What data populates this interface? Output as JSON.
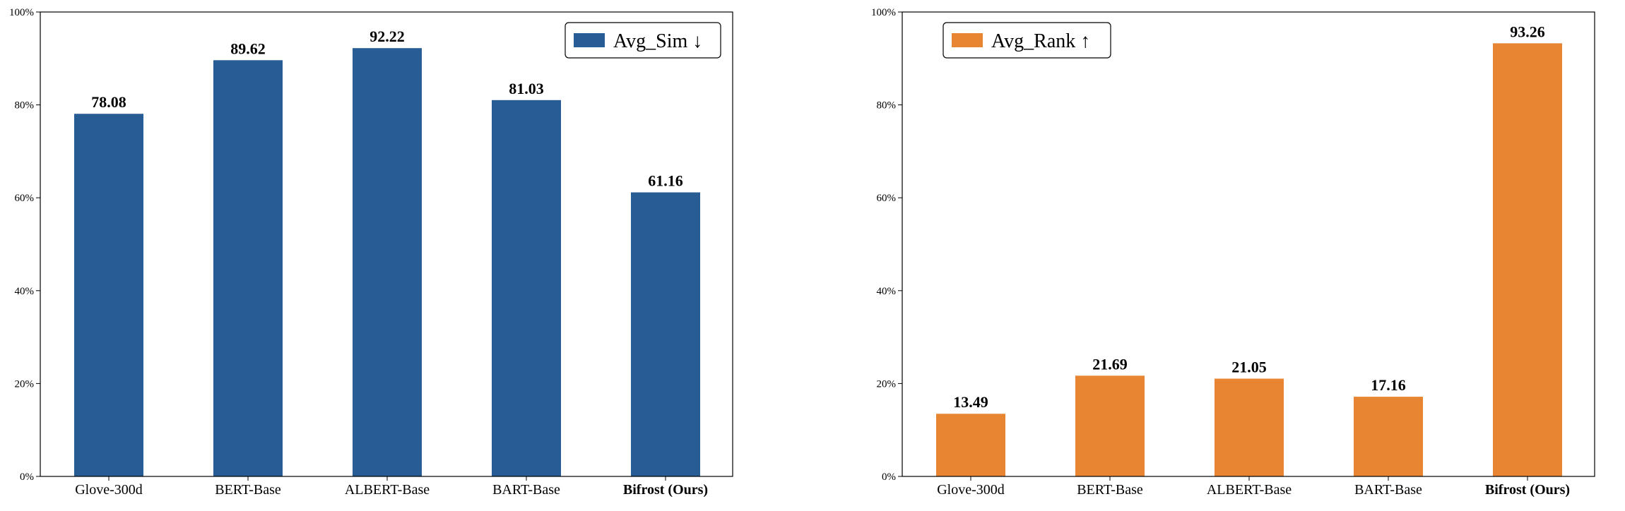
{
  "chart_data": [
    {
      "type": "bar",
      "categories": [
        "Glove-300d",
        "BERT-Base",
        "ALBERT-Base",
        "BART-Base",
        "Bifrost (Ours)"
      ],
      "highlight_category": "Bifrost (Ours)",
      "series": [
        {
          "name": "Avg_Sim ↓",
          "values": [
            78.08,
            89.62,
            92.22,
            81.03,
            61.16
          ],
          "color": "#275d94"
        }
      ],
      "value_labels": [
        "78.08",
        "89.62",
        "92.22",
        "81.03",
        "61.16"
      ],
      "ylim": [
        0,
        100
      ],
      "yticks": [
        "0%",
        "20%",
        "40%",
        "60%",
        "80%",
        "100%"
      ],
      "legend_position": "top-right",
      "grid": false
    },
    {
      "type": "bar",
      "categories": [
        "Glove-300d",
        "BERT-Base",
        "ALBERT-Base",
        "BART-Base",
        "Bifrost (Ours)"
      ],
      "highlight_category": "Bifrost (Ours)",
      "series": [
        {
          "name": "Avg_Rank ↑",
          "values": [
            13.49,
            21.69,
            21.05,
            17.16,
            93.26
          ],
          "color": "#e78532"
        }
      ],
      "value_labels": [
        "13.49",
        "21.69",
        "21.05",
        "17.16",
        "93.26"
      ],
      "ylim": [
        0,
        100
      ],
      "yticks": [
        "0%",
        "20%",
        "40%",
        "60%",
        "80%",
        "100%"
      ],
      "legend_position": "top-left",
      "grid": false
    }
  ]
}
